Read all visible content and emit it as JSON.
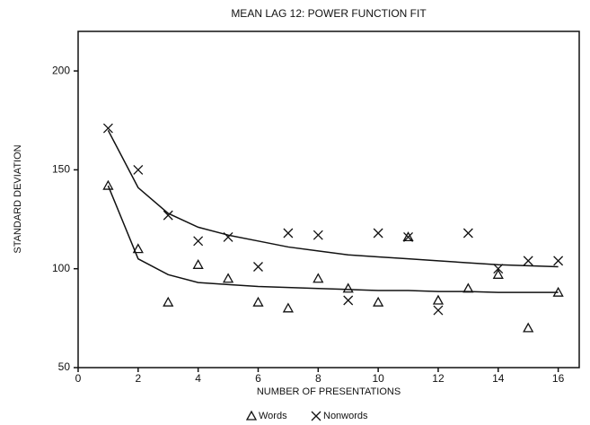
{
  "chart_data": {
    "type": "scatter",
    "title": "MEAN LAG 12: POWER FUNCTION FIT",
    "xlabel": "NUMBER OF PRESENTATIONS",
    "ylabel": "STANDARD DEVIATION",
    "x": [
      1,
      2,
      3,
      4,
      5,
      6,
      7,
      8,
      9,
      10,
      11,
      12,
      13,
      14,
      15,
      16
    ],
    "series": [
      {
        "name": "Words",
        "marker": "triangle",
        "color": "#111111",
        "values": [
          142,
          110,
          83,
          102,
          95,
          83,
          80,
          95,
          90,
          83,
          116,
          84,
          90,
          97,
          70,
          88
        ],
        "fit": [
          142,
          105,
          97,
          93,
          92,
          91,
          90.5,
          90,
          89.5,
          89,
          89,
          88.5,
          88.5,
          88,
          88,
          88
        ]
      },
      {
        "name": "Nonwords",
        "marker": "x",
        "color": "#111111",
        "values": [
          171,
          150,
          127,
          114,
          116,
          101,
          118,
          117,
          84,
          118,
          116,
          79,
          118,
          100,
          104,
          104
        ],
        "fit": [
          170,
          141,
          128,
          121,
          117,
          114,
          111,
          109,
          107,
          106,
          105,
          104,
          103,
          102,
          101.5,
          101
        ]
      }
    ],
    "xlim": [
      0,
      16.7
    ],
    "ylim": [
      50,
      220
    ],
    "xticks": [
      0,
      2,
      4,
      6,
      8,
      10,
      12,
      14,
      16
    ],
    "yticks": [
      50,
      100,
      150,
      200
    ]
  }
}
